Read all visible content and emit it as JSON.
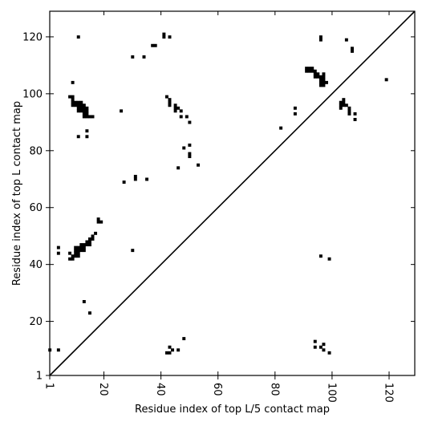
{
  "chart_data": {
    "type": "scatter",
    "marker": "square",
    "xlabel": "Residue index of top L/5 contact map",
    "ylabel": "Residue index of top L contact map",
    "xlim": [
      1,
      129
    ],
    "ylim": [
      1,
      129
    ],
    "x_ticks": [
      "1",
      "20",
      "40",
      "60",
      "80",
      "100",
      "120"
    ],
    "x_tick_values": [
      1,
      20,
      40,
      60,
      80,
      100,
      120
    ],
    "y_ticks": [
      "1",
      "20",
      "40",
      "60",
      "80",
      "100",
      "120"
    ],
    "y_tick_values": [
      1,
      20,
      40,
      60,
      80,
      100,
      120
    ],
    "x_tick_rotation": "vertical",
    "diagonal_line": true,
    "grid": false,
    "legend": "none",
    "colors": {
      "points": "#000000",
      "axes": "#000000",
      "background": "#ffffff"
    },
    "series": [
      {
        "points": [
          [
            11,
            120
          ],
          [
            41,
            121
          ],
          [
            41,
            120
          ],
          [
            43,
            120
          ],
          [
            30,
            113
          ],
          [
            34,
            113
          ],
          [
            37,
            117
          ],
          [
            38,
            117
          ],
          [
            9,
            104
          ],
          [
            8,
            99
          ],
          [
            9,
            99
          ],
          [
            9,
            98
          ],
          [
            9,
            97
          ],
          [
            10,
            97
          ],
          [
            11,
            97
          ],
          [
            12,
            97
          ],
          [
            9,
            96
          ],
          [
            10,
            96
          ],
          [
            11,
            96
          ],
          [
            12,
            96
          ],
          [
            13,
            96
          ],
          [
            11,
            95
          ],
          [
            12,
            95
          ],
          [
            13,
            95
          ],
          [
            14,
            95
          ],
          [
            11,
            94
          ],
          [
            12,
            94
          ],
          [
            13,
            94
          ],
          [
            14,
            94
          ],
          [
            13,
            93
          ],
          [
            14,
            93
          ],
          [
            13,
            92
          ],
          [
            14,
            92
          ],
          [
            15,
            92
          ],
          [
            16,
            92
          ],
          [
            11,
            85
          ],
          [
            14,
            85
          ],
          [
            14,
            87
          ],
          [
            26,
            94
          ],
          [
            42,
            99
          ],
          [
            43,
            98
          ],
          [
            43,
            97
          ],
          [
            43,
            96
          ],
          [
            45,
            96
          ],
          [
            45,
            95
          ],
          [
            46,
            95
          ],
          [
            47,
            94
          ],
          [
            45,
            94
          ],
          [
            47,
            92
          ],
          [
            49,
            92
          ],
          [
            50,
            90
          ],
          [
            48,
            81
          ],
          [
            50,
            82
          ],
          [
            50,
            79
          ],
          [
            50,
            78
          ],
          [
            46,
            74
          ],
          [
            53,
            75
          ],
          [
            27,
            69
          ],
          [
            31,
            71
          ],
          [
            31,
            70
          ],
          [
            35,
            70
          ],
          [
            18,
            56
          ],
          [
            18,
            55
          ],
          [
            19,
            55
          ],
          [
            17,
            51
          ],
          [
            16,
            50
          ],
          [
            15,
            49
          ],
          [
            16,
            49
          ],
          [
            14,
            48
          ],
          [
            15,
            48
          ],
          [
            12,
            47
          ],
          [
            13,
            47
          ],
          [
            14,
            47
          ],
          [
            15,
            47
          ],
          [
            10,
            46
          ],
          [
            11,
            46
          ],
          [
            12,
            46
          ],
          [
            13,
            46
          ],
          [
            10,
            45
          ],
          [
            11,
            45
          ],
          [
            12,
            45
          ],
          [
            13,
            45
          ],
          [
            10,
            44
          ],
          [
            11,
            44
          ],
          [
            8,
            44
          ],
          [
            9,
            43
          ],
          [
            10,
            43
          ],
          [
            11,
            43
          ],
          [
            8,
            42
          ],
          [
            9,
            42
          ],
          [
            4,
            46
          ],
          [
            4,
            44
          ],
          [
            30,
            45
          ],
          [
            13,
            27
          ],
          [
            15,
            23
          ],
          [
            1,
            10
          ],
          [
            4,
            10
          ],
          [
            42,
            9
          ],
          [
            43,
            9
          ],
          [
            43,
            11
          ],
          [
            44,
            10
          ],
          [
            46,
            10
          ],
          [
            48,
            14
          ],
          [
            94,
            13
          ],
          [
            94,
            11
          ],
          [
            96,
            11
          ],
          [
            97,
            12
          ],
          [
            97,
            10
          ],
          [
            99,
            9
          ],
          [
            96,
            43
          ],
          [
            99,
            42
          ],
          [
            82,
            88
          ],
          [
            87,
            95
          ],
          [
            87,
            93
          ],
          [
            91,
            109
          ],
          [
            92,
            109
          ],
          [
            93,
            109
          ],
          [
            91,
            108
          ],
          [
            92,
            108
          ],
          [
            93,
            108
          ],
          [
            94,
            108
          ],
          [
            94,
            107
          ],
          [
            95,
            107
          ],
          [
            97,
            107
          ],
          [
            94,
            106
          ],
          [
            95,
            106
          ],
          [
            96,
            106
          ],
          [
            97,
            106
          ],
          [
            96,
            105
          ],
          [
            97,
            105
          ],
          [
            96,
            104
          ],
          [
            97,
            104
          ],
          [
            98,
            104
          ],
          [
            96,
            103
          ],
          [
            97,
            103
          ],
          [
            96,
            120
          ],
          [
            96,
            119
          ],
          [
            105,
            119
          ],
          [
            107,
            116
          ],
          [
            107,
            115
          ],
          [
            104,
            98
          ],
          [
            103,
            97
          ],
          [
            104,
            97
          ],
          [
            103,
            96
          ],
          [
            104,
            96
          ],
          [
            105,
            96
          ],
          [
            103,
            95
          ],
          [
            106,
            95
          ],
          [
            106,
            94
          ],
          [
            106,
            93
          ],
          [
            108,
            93
          ],
          [
            108,
            91
          ],
          [
            119,
            105
          ]
        ]
      }
    ]
  }
}
